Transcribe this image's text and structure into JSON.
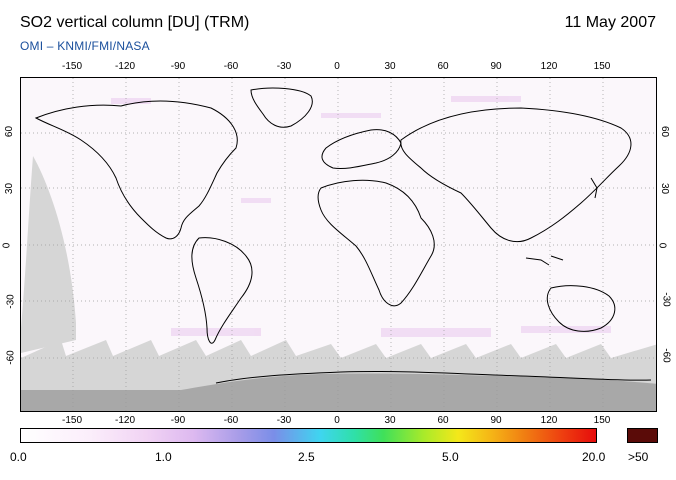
{
  "header": {
    "title": "SO2 vertical column [DU] (TRM)",
    "date": "11 May 2007",
    "subtitle": "OMI  –  KNMI/FMI/NASA"
  },
  "map": {
    "lon_ticks_top": [
      "-150",
      "-120",
      "-90",
      "-60",
      "-30",
      "0",
      "30",
      "60",
      "90",
      "120",
      "150"
    ],
    "lon_ticks_bottom": [
      "-150",
      "-120",
      "-90",
      "-60",
      "-30",
      "0",
      "30",
      "60",
      "90",
      "120",
      "150"
    ],
    "lat_ticks_left": [
      "60",
      "30",
      "0",
      "-30",
      "-60"
    ],
    "lat_ticks_right": [
      "60",
      "30",
      "0",
      "-30",
      "-60"
    ],
    "colors": {
      "no_data": "#d6d6d6",
      "polar_night": "#a8a8a8",
      "background": "#fbf7fb",
      "coast": "#000000"
    }
  },
  "colorbar": {
    "labels": [
      "0.0",
      "1.0",
      "2.5",
      "5.0",
      "20.0"
    ],
    "overflow_label": ">50",
    "overflow_color": "#5a0b08"
  }
}
